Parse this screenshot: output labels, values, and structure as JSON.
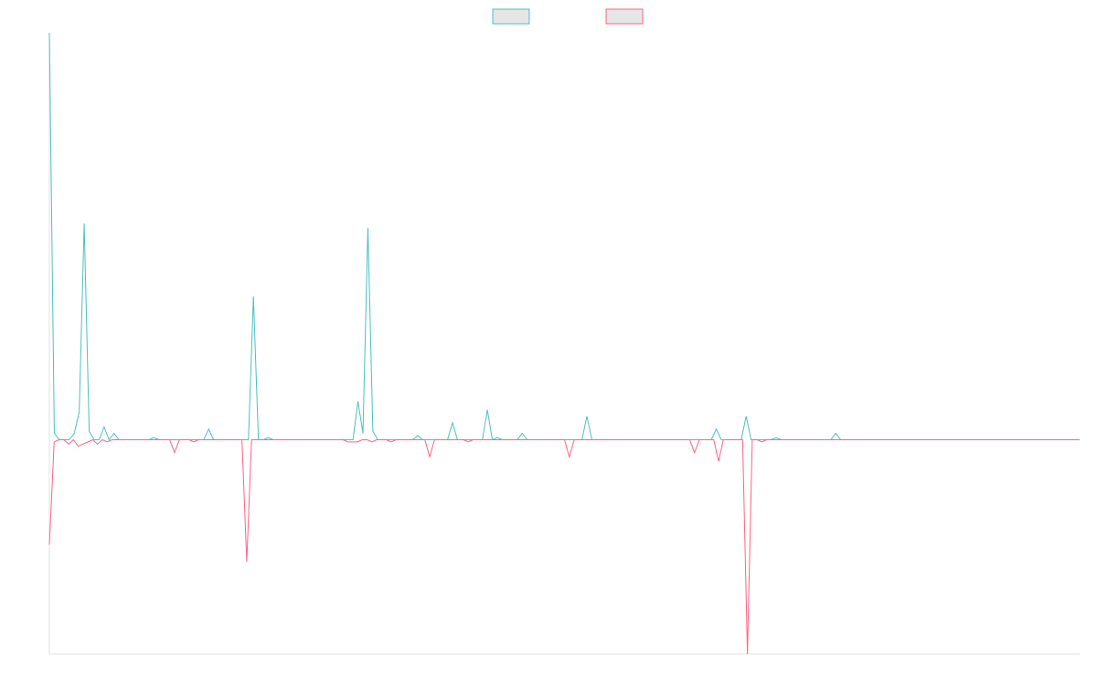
{
  "chart_data": {
    "type": "line",
    "title": "",
    "xlabel": "",
    "ylabel": "",
    "legend_position": "top-center",
    "grid": false,
    "ylim": [
      -100,
      190
    ],
    "series": [
      {
        "color": "#4bc0c0",
        "legend_fill": "#e6e6e6",
        "values": [
          190,
          3,
          0,
          0,
          0,
          3,
          13,
          101,
          4,
          0,
          0,
          6,
          0,
          3,
          0,
          0,
          0,
          0,
          0,
          0,
          0,
          1,
          0,
          0,
          0,
          0,
          0,
          0,
          0,
          0,
          0,
          0,
          5,
          0,
          0,
          0,
          0,
          0,
          0,
          0,
          0,
          67,
          0,
          0,
          1,
          0,
          0,
          0,
          0,
          0,
          0,
          0,
          0,
          0,
          0,
          0,
          0,
          0,
          0,
          0,
          0,
          0,
          18,
          3,
          99,
          4,
          0,
          0,
          0,
          0,
          0,
          0,
          0,
          0,
          2,
          0,
          0,
          0,
          0,
          0,
          0,
          8,
          0,
          0,
          0,
          0,
          0,
          0,
          14,
          0,
          1,
          0,
          0,
          0,
          0,
          3,
          0,
          0,
          0,
          0,
          0,
          0,
          0,
          0,
          0,
          0,
          0,
          0,
          11,
          0,
          0,
          0,
          0,
          0,
          0,
          0,
          0,
          0,
          0,
          0,
          0,
          0,
          0,
          0,
          0,
          0,
          0,
          0,
          0,
          0,
          0,
          0,
          0,
          0,
          5,
          0,
          0,
          0,
          0,
          0,
          11,
          0,
          0,
          0,
          0,
          0,
          1,
          0,
          0,
          0,
          0,
          0,
          0,
          0,
          0,
          0,
          0,
          0,
          3,
          0,
          0,
          0,
          0,
          0,
          0,
          0,
          0,
          0,
          0,
          0,
          0,
          0,
          0,
          0,
          0,
          0,
          0,
          0,
          0,
          0,
          0,
          0,
          0,
          0,
          0,
          0,
          0,
          0,
          0,
          0,
          0,
          0,
          0,
          0,
          0,
          0,
          0,
          0,
          0,
          0,
          0,
          0,
          0,
          0,
          0,
          0,
          0,
          0
        ]
      },
      {
        "color": "#ff6384",
        "legend_fill": "#e6e6e6",
        "values": [
          -49,
          -1,
          0,
          0,
          -2,
          0,
          -3,
          -2,
          -1,
          0,
          -2,
          0,
          -1,
          0,
          0,
          0,
          0,
          0,
          0,
          0,
          0,
          0,
          0,
          0,
          0,
          0,
          -6,
          0,
          0,
          0,
          -1,
          0,
          0,
          0,
          0,
          0,
          0,
          0,
          0,
          0,
          0,
          -57,
          0,
          0,
          0,
          0,
          0,
          0,
          0,
          0,
          0,
          0,
          0,
          0,
          0,
          0,
          0,
          0,
          0,
          0,
          0,
          0,
          -1,
          -1,
          -1,
          0,
          0,
          -1,
          0,
          0,
          0,
          -1,
          0,
          0,
          0,
          0,
          0,
          0,
          0,
          -8,
          0,
          0,
          0,
          0,
          0,
          0,
          0,
          -1,
          0,
          0,
          0,
          0,
          0,
          0,
          0,
          0,
          0,
          0,
          0,
          0,
          0,
          0,
          0,
          0,
          0,
          0,
          0,
          0,
          -8,
          0,
          0,
          0,
          0,
          0,
          0,
          0,
          0,
          0,
          0,
          0,
          0,
          0,
          0,
          0,
          0,
          0,
          0,
          0,
          0,
          0,
          0,
          0,
          0,
          0,
          -6,
          0,
          0,
          0,
          0,
          -10,
          0,
          0,
          0,
          0,
          0,
          -100,
          0,
          0,
          -1,
          0,
          0,
          0,
          0,
          0,
          0,
          0,
          0,
          0,
          0,
          0,
          0,
          0,
          0,
          0,
          0,
          0,
          0,
          0,
          0,
          0,
          0,
          0,
          0,
          0,
          0,
          0,
          0,
          0,
          0,
          0,
          0,
          0,
          0,
          0,
          0,
          0,
          0,
          0,
          0,
          0,
          0,
          0,
          0,
          0,
          0,
          0,
          0,
          0,
          0,
          0,
          0,
          0,
          0,
          0,
          0,
          0,
          0,
          0,
          0,
          0,
          0,
          0,
          0,
          0,
          0
        ]
      }
    ]
  }
}
